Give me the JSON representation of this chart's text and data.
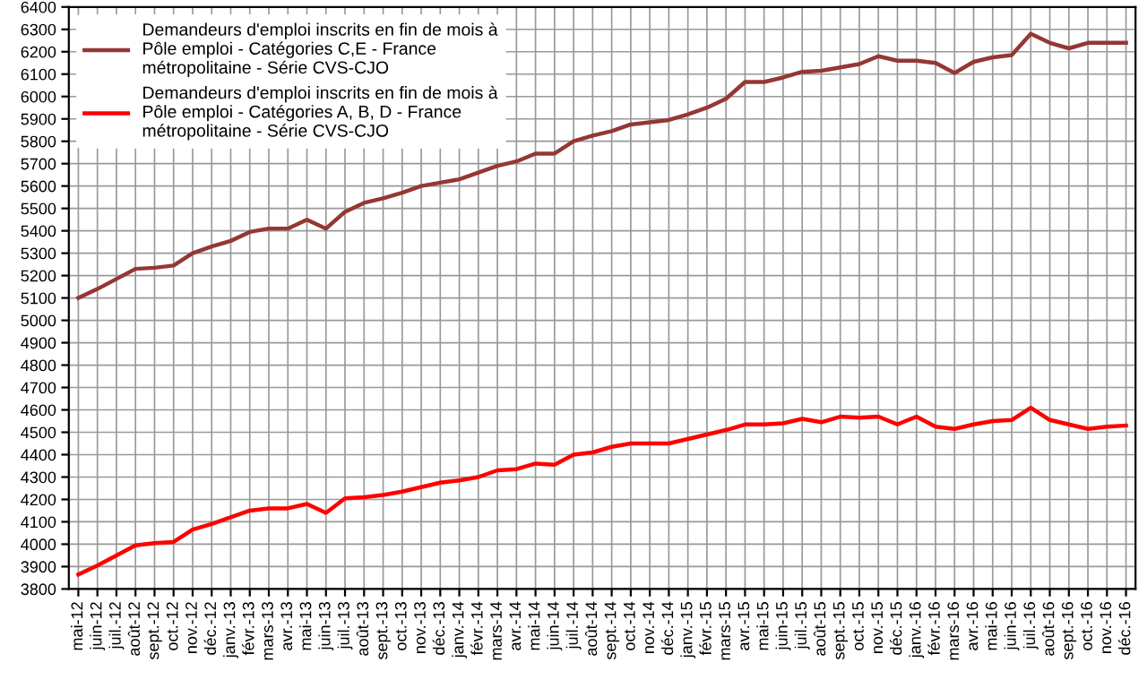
{
  "chart_data": {
    "type": "line",
    "categories": [
      "mai-12",
      "juin-12",
      "juil.-12",
      "août-12",
      "sept.-12",
      "oct.-12",
      "nov.-12",
      "déc.-12",
      "janv.-13",
      "févr.-13",
      "mars-13",
      "avr.-13",
      "mai-13",
      "juin-13",
      "juil.-13",
      "août-13",
      "sept.-13",
      "oct.-13",
      "nov.-13",
      "déc.-13",
      "janv.-14",
      "févr.-14",
      "mars-14",
      "avr.-14",
      "mai-14",
      "juin-14",
      "juil.-14",
      "août-14",
      "sept.-14",
      "oct.-14",
      "nov.-14",
      "déc.-14",
      "janv.-15",
      "févr.-15",
      "mars-15",
      "avr.-15",
      "mai-15",
      "juin-15",
      "juil.-15",
      "août-15",
      "sept.-15",
      "oct.-15",
      "nov.-15",
      "déc.-15",
      "janv.-16",
      "févr.-16",
      "mars-16",
      "avr.-16",
      "mai-16",
      "juin-16",
      "juil.-16",
      "août-16",
      "sept.-16",
      "oct.-16",
      "nov.-16",
      "déc.-16"
    ],
    "series": [
      {
        "name": "Demandeurs d'emploi inscrits en fin de mois à Pôle emploi - Catégories C,E - France métropolitaine - Série CVS-CJO",
        "color": "#953735",
        "values": [
          5100,
          5140,
          5185,
          5230,
          5235,
          5245,
          5300,
          5330,
          5355,
          5395,
          5410,
          5410,
          5450,
          5410,
          5485,
          5525,
          5545,
          5570,
          5600,
          5615,
          5630,
          5660,
          5690,
          5710,
          5745,
          5745,
          5800,
          5825,
          5845,
          5875,
          5885,
          5895,
          5920,
          5950,
          5990,
          6065,
          6065,
          6085,
          6110,
          6115,
          6130,
          6145,
          6180,
          6160,
          6160,
          6150,
          6105,
          6155,
          6175,
          6185,
          6280,
          6240,
          6215,
          6240,
          6240,
          6240
        ]
      },
      {
        "name": "Demandeurs d'emploi inscrits en fin de mois à Pôle emploi - Catégories A, B, D - France métropolitaine - Série CVS-CJO",
        "color": "#ff0000",
        "values": [
          3865,
          3905,
          3950,
          3995,
          4005,
          4010,
          4065,
          4090,
          4120,
          4150,
          4160,
          4160,
          4180,
          4140,
          4205,
          4210,
          4220,
          4235,
          4255,
          4275,
          4285,
          4300,
          4330,
          4335,
          4360,
          4355,
          4400,
          4410,
          4435,
          4450,
          4450,
          4450,
          4470,
          4490,
          4510,
          4535,
          4535,
          4540,
          4560,
          4545,
          4570,
          4565,
          4570,
          4535,
          4570,
          4525,
          4515,
          4535,
          4550,
          4555,
          4610,
          4555,
          4535,
          4515,
          4525,
          4530
        ]
      }
    ],
    "ylim": [
      3800,
      6400
    ],
    "yticks": [
      3800,
      3900,
      4000,
      4100,
      4200,
      4300,
      4400,
      4500,
      4600,
      4700,
      4800,
      4900,
      5000,
      5100,
      5200,
      5300,
      5400,
      5500,
      5600,
      5700,
      5800,
      5900,
      6000,
      6100,
      6200,
      6300,
      6400
    ],
    "grid": true,
    "legend": "top left",
    "marker": "none",
    "line_style": "solid"
  }
}
